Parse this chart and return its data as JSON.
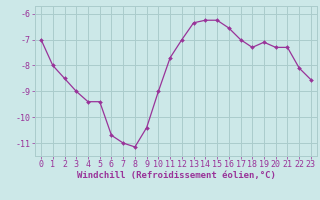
{
  "x": [
    0,
    1,
    2,
    3,
    4,
    5,
    6,
    7,
    8,
    9,
    10,
    11,
    12,
    13,
    14,
    15,
    16,
    17,
    18,
    19,
    20,
    21,
    22,
    23
  ],
  "y": [
    -7.0,
    -8.0,
    -8.5,
    -9.0,
    -9.4,
    -9.4,
    -10.7,
    -11.0,
    -11.15,
    -10.4,
    -9.0,
    -7.7,
    -7.0,
    -6.35,
    -6.25,
    -6.25,
    -6.55,
    -7.0,
    -7.3,
    -7.1,
    -7.3,
    -7.3,
    -8.1,
    -8.55
  ],
  "line_color": "#993399",
  "marker": "D",
  "marker_size": 2.0,
  "bg_color": "#cce8e8",
  "grid_color": "#aacccc",
  "xlabel": "Windchill (Refroidissement éolien,°C)",
  "xlim": [
    -0.5,
    23.5
  ],
  "ylim": [
    -11.5,
    -5.7
  ],
  "yticks": [
    -11,
    -10,
    -9,
    -8,
    -7,
    -6
  ],
  "xticks": [
    0,
    1,
    2,
    3,
    4,
    5,
    6,
    7,
    8,
    9,
    10,
    11,
    12,
    13,
    14,
    15,
    16,
    17,
    18,
    19,
    20,
    21,
    22,
    23
  ],
  "title_color": "#993399",
  "tick_fontsize": 6,
  "xlabel_fontsize": 6.5,
  "linewidth": 0.9
}
